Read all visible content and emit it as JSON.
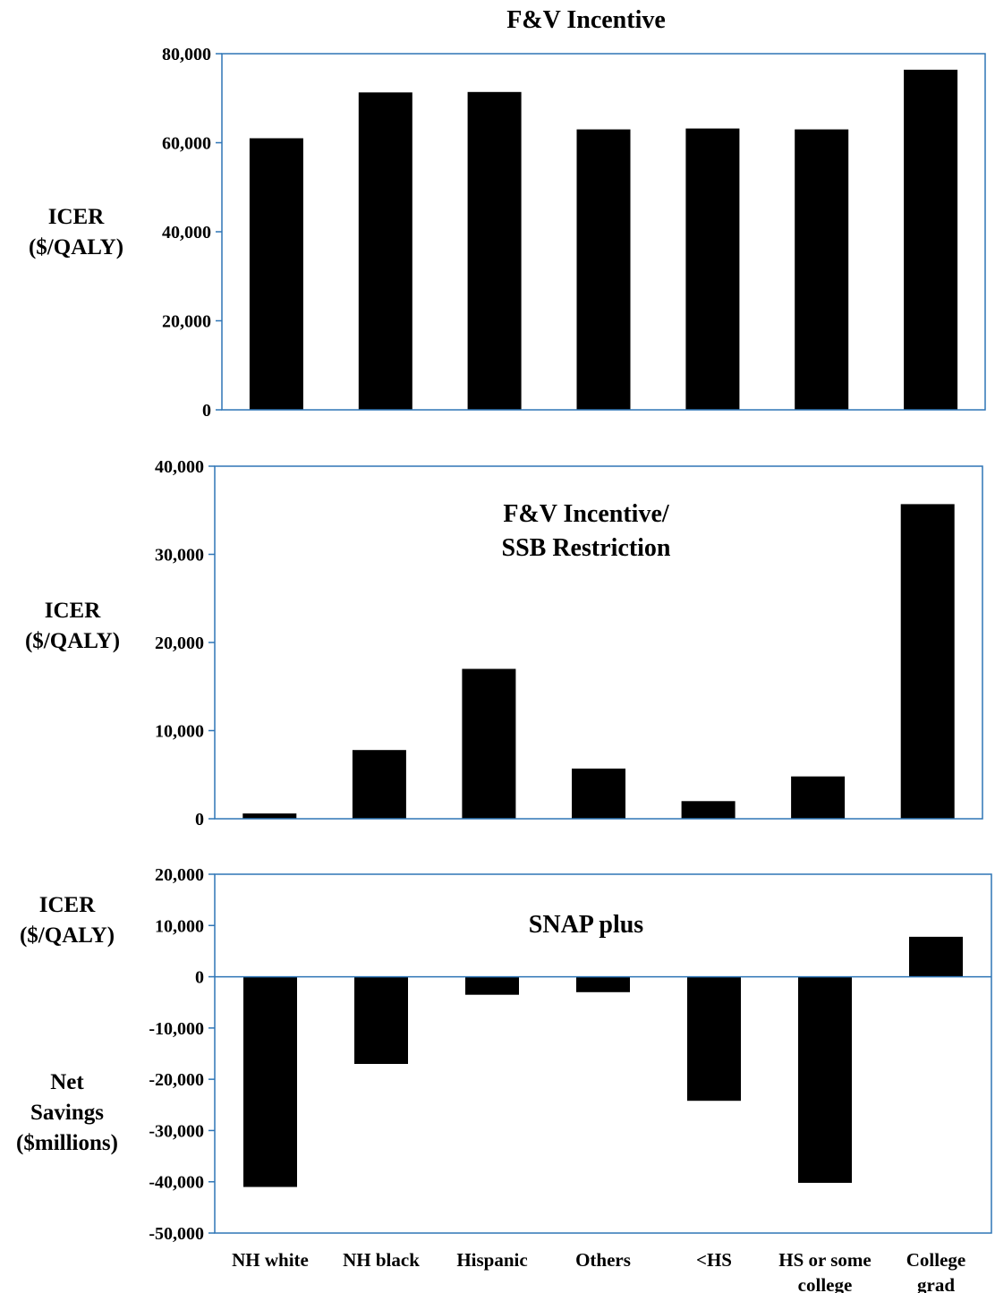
{
  "chart_data": [
    {
      "type": "bar",
      "title": "F&V Incentive",
      "title_lines": [
        "F&V Incentive"
      ],
      "ylabel_lines": [
        "ICER",
        "($/QALY)"
      ],
      "categories": [
        "NH white",
        "NH black",
        "Hispanic",
        "Others",
        "<HS",
        "HS or some college",
        "College grad"
      ],
      "values": [
        61000,
        71300,
        71400,
        63000,
        63200,
        63000,
        76400
      ],
      "ylim": [
        0,
        80000
      ],
      "yticks": [
        0,
        20000,
        40000,
        60000,
        80000
      ],
      "ytick_labels": [
        "0",
        "20,000",
        "40,000",
        "60,000",
        "80,000"
      ],
      "grid": false,
      "bar_color": "#000000",
      "frame_color": "#2e75b6"
    },
    {
      "type": "bar",
      "title": "F&V Incentive/ SSB Restriction",
      "title_lines": [
        "F&V Incentive/",
        "SSB Restriction"
      ],
      "ylabel_lines": [
        "ICER",
        "($/QALY)"
      ],
      "categories": [
        "NH white",
        "NH black",
        "Hispanic",
        "Others",
        "<HS",
        "HS or some college",
        "College grad"
      ],
      "values": [
        600,
        7800,
        17000,
        5700,
        2000,
        4800,
        35700
      ],
      "ylim": [
        0,
        40000
      ],
      "yticks": [
        0,
        10000,
        20000,
        30000,
        40000
      ],
      "ytick_labels": [
        "0",
        "10,000",
        "20,000",
        "30,000",
        "40,000"
      ],
      "grid": false,
      "bar_color": "#000000",
      "frame_color": "#2e75b6"
    },
    {
      "type": "bar",
      "title": "SNAP plus",
      "title_lines": [
        "SNAP plus"
      ],
      "ylabel_lines": [
        "ICER",
        "($/QALY)"
      ],
      "ylabel2_lines": [
        "Net",
        "Savings",
        "($millions)"
      ],
      "categories": [
        "NH white",
        "NH black",
        "Hispanic",
        "Others",
        "<HS",
        "HS or some college",
        "College grad"
      ],
      "category_lines": [
        [
          "NH white"
        ],
        [
          "NH black"
        ],
        [
          "Hispanic"
        ],
        [
          "Others"
        ],
        [
          "<HS"
        ],
        [
          "HS or some",
          "college"
        ],
        [
          "College",
          "grad"
        ]
      ],
      "values": [
        -41000,
        -17000,
        -3500,
        -3000,
        -24200,
        -40200,
        7800
      ],
      "ylim": [
        -50000,
        20000
      ],
      "yticks": [
        -50000,
        -40000,
        -30000,
        -20000,
        -10000,
        0,
        10000,
        20000
      ],
      "ytick_labels": [
        "-50,000",
        "-40,000",
        "-30,000",
        "-20,000",
        "-10,000",
        "0",
        "10,000",
        "20,000"
      ],
      "grid": false,
      "bar_color": "#000000",
      "frame_color": "#2e75b6"
    }
  ]
}
